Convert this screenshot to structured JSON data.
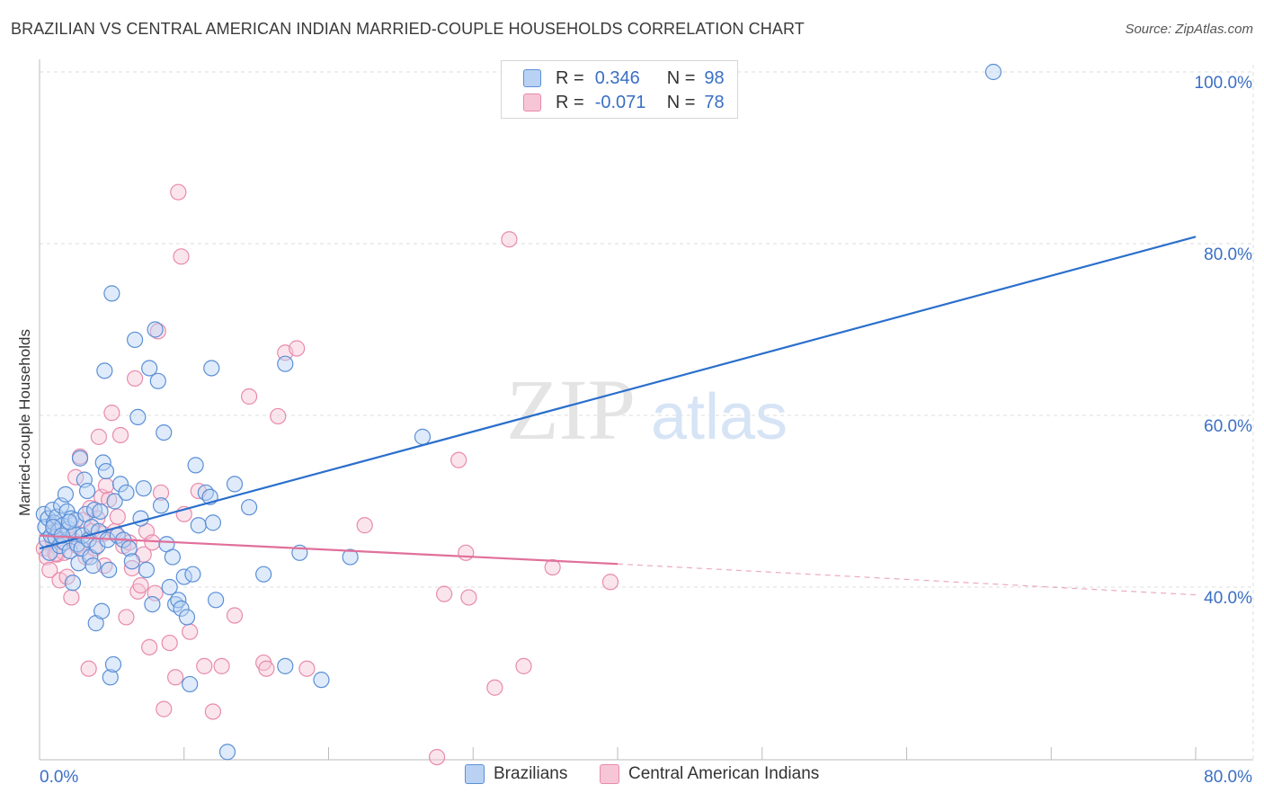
{
  "title": "BRAZILIAN VS CENTRAL AMERICAN INDIAN MARRIED-COUPLE HOUSEHOLDS CORRELATION CHART",
  "source": "Source: ZipAtlas.com",
  "watermark": {
    "zip": "ZIP",
    "atlas": "atlas"
  },
  "legend": {
    "rows": [
      {
        "r_label": "R =",
        "r_value": "0.346",
        "n_label": "N =",
        "n_value": "98"
      },
      {
        "r_label": "R =",
        "r_value": "-0.071",
        "n_label": "N =",
        "n_value": "78"
      }
    ]
  },
  "colors": {
    "blue_fill": "#b9d2f3",
    "blue_stroke": "#5b8fd6",
    "blue_line": "#2a6fcc",
    "pink_fill": "#f7c6d6",
    "pink_stroke": "#e88aab",
    "pink_line": "#e0709a",
    "tick_text": "#3a6fc4",
    "grid": "#dddddd"
  },
  "chart_data": {
    "type": "scatter",
    "title": "BRAZILIAN VS CENTRAL AMERICAN INDIAN MARRIED-COUPLE HOUSEHOLDS CORRELATION CHART",
    "xlabel": "",
    "ylabel": "Married-couple Households",
    "xlim": [
      0,
      80
    ],
    "ylim": [
      20,
      100
    ],
    "x_tick_labels": [
      {
        "value": 0,
        "label": "0.0%"
      },
      {
        "value": 80,
        "label": "80.0%"
      }
    ],
    "y_tick_labels": [
      {
        "value": 40,
        "label": "40.0%"
      },
      {
        "value": 60,
        "label": "60.0%"
      },
      {
        "value": 80,
        "label": "80.0%"
      },
      {
        "value": 100,
        "label": "100.0%"
      }
    ],
    "grid": true,
    "legend_position": "top-center",
    "series": [
      {
        "name": "Brazilians",
        "r": 0.346,
        "n": 98,
        "trend": {
          "x": [
            0,
            80
          ],
          "y": [
            44.5,
            80.8
          ],
          "dashed_from": null
        },
        "points": [
          [
            0.3,
            48.5
          ],
          [
            0.4,
            47
          ],
          [
            0.5,
            45.5
          ],
          [
            0.6,
            48
          ],
          [
            0.7,
            44
          ],
          [
            0.8,
            46
          ],
          [
            0.9,
            49
          ],
          [
            1.0,
            47.5
          ],
          [
            1.1,
            45.8
          ],
          [
            1.2,
            48.2
          ],
          [
            1.3,
            46.5
          ],
          [
            1.4,
            44.8
          ],
          [
            1.5,
            49.5
          ],
          [
            1.6,
            47.2
          ],
          [
            1.7,
            45.2
          ],
          [
            1.8,
            50.8
          ],
          [
            1.9,
            48.8
          ],
          [
            2.0,
            46.8
          ],
          [
            2.1,
            44.2
          ],
          [
            2.2,
            48.0
          ],
          [
            2.3,
            40.5
          ],
          [
            2.4,
            46.2
          ],
          [
            2.5,
            47.8
          ],
          [
            2.6,
            45.0
          ],
          [
            2.7,
            42.8
          ],
          [
            2.8,
            55.0
          ],
          [
            2.9,
            44.5
          ],
          [
            3.0,
            46.0
          ],
          [
            3.1,
            52.5
          ],
          [
            3.2,
            48.5
          ],
          [
            3.3,
            51.2
          ],
          [
            3.4,
            45.5
          ],
          [
            3.5,
            43.5
          ],
          [
            3.6,
            47.0
          ],
          [
            3.7,
            42.5
          ],
          [
            3.8,
            49.0
          ],
          [
            3.9,
            35.8
          ],
          [
            4.0,
            44.8
          ],
          [
            4.1,
            46.5
          ],
          [
            4.2,
            48.8
          ],
          [
            4.3,
            37.2
          ],
          [
            4.4,
            54.5
          ],
          [
            4.5,
            65.2
          ],
          [
            4.6,
            53.5
          ],
          [
            4.7,
            45.5
          ],
          [
            4.8,
            42.0
          ],
          [
            4.9,
            29.5
          ],
          [
            5.0,
            74.2
          ],
          [
            5.1,
            31.0
          ],
          [
            5.2,
            50.0
          ],
          [
            5.4,
            46.0
          ],
          [
            5.6,
            52.0
          ],
          [
            5.8,
            45.5
          ],
          [
            6.0,
            51.0
          ],
          [
            6.2,
            44.5
          ],
          [
            6.4,
            43.0
          ],
          [
            6.6,
            68.8
          ],
          [
            6.8,
            59.8
          ],
          [
            7.0,
            48.0
          ],
          [
            7.2,
            51.5
          ],
          [
            7.4,
            42.0
          ],
          [
            7.6,
            65.5
          ],
          [
            7.8,
            38.0
          ],
          [
            8.0,
            70.0
          ],
          [
            8.2,
            64.0
          ],
          [
            8.4,
            49.5
          ],
          [
            8.6,
            58.0
          ],
          [
            8.8,
            45.0
          ],
          [
            9.0,
            40.0
          ],
          [
            9.2,
            43.5
          ],
          [
            9.4,
            38.0
          ],
          [
            9.6,
            38.5
          ],
          [
            9.8,
            37.5
          ],
          [
            10.0,
            41.2
          ],
          [
            10.2,
            36.5
          ],
          [
            10.4,
            28.7
          ],
          [
            10.6,
            41.5
          ],
          [
            10.8,
            54.2
          ],
          [
            11.0,
            47.2
          ],
          [
            11.5,
            51.0
          ],
          [
            11.8,
            50.5
          ],
          [
            12.0,
            47.5
          ],
          [
            12.2,
            38.5
          ],
          [
            11.9,
            65.5
          ],
          [
            13.0,
            20.8
          ],
          [
            13.5,
            52.0
          ],
          [
            14.5,
            49.3
          ],
          [
            15.5,
            41.5
          ],
          [
            17.0,
            30.8
          ],
          [
            17.0,
            66.0
          ],
          [
            18.0,
            44.0
          ],
          [
            19.5,
            29.2
          ],
          [
            21.5,
            43.5
          ],
          [
            26.5,
            57.5
          ],
          [
            66.0,
            100.0
          ],
          [
            2.05,
            47.6
          ],
          [
            0.95,
            47.0
          ],
          [
            1.55,
            46.0
          ]
        ]
      },
      {
        "name": "Central American Indians",
        "r": -0.071,
        "n": 78,
        "trend": {
          "x": [
            0,
            40,
            80
          ],
          "y": [
            46.0,
            42.7,
            39.1
          ],
          "dashed_from": 40
        },
        "points": [
          [
            0.3,
            44.5
          ],
          [
            0.5,
            43.5
          ],
          [
            0.7,
            42.0
          ],
          [
            0.9,
            45.5
          ],
          [
            1.0,
            46.8
          ],
          [
            1.2,
            43.8
          ],
          [
            1.4,
            40.8
          ],
          [
            1.5,
            46.2
          ],
          [
            1.7,
            44.0
          ],
          [
            1.9,
            41.2
          ],
          [
            2.0,
            46.0
          ],
          [
            2.2,
            38.8
          ],
          [
            2.3,
            45.5
          ],
          [
            2.5,
            52.8
          ],
          [
            2.6,
            44.8
          ],
          [
            2.8,
            55.2
          ],
          [
            3.0,
            47.8
          ],
          [
            3.2,
            43.5
          ],
          [
            3.4,
            30.5
          ],
          [
            3.5,
            49.2
          ],
          [
            3.6,
            46.5
          ],
          [
            3.8,
            44.5
          ],
          [
            4.0,
            48.0
          ],
          [
            4.1,
            57.5
          ],
          [
            4.3,
            50.5
          ],
          [
            4.4,
            46.2
          ],
          [
            4.5,
            42.5
          ],
          [
            4.6,
            51.8
          ],
          [
            4.8,
            50.2
          ],
          [
            5.0,
            60.3
          ],
          [
            5.2,
            46.5
          ],
          [
            5.4,
            48.2
          ],
          [
            5.6,
            57.7
          ],
          [
            5.8,
            44.8
          ],
          [
            6.0,
            36.5
          ],
          [
            6.2,
            45.2
          ],
          [
            6.4,
            42.2
          ],
          [
            6.6,
            64.3
          ],
          [
            6.8,
            39.5
          ],
          [
            7.0,
            40.2
          ],
          [
            7.2,
            43.8
          ],
          [
            7.4,
            46.5
          ],
          [
            7.6,
            33.0
          ],
          [
            7.8,
            45.2
          ],
          [
            8.0,
            39.3
          ],
          [
            8.2,
            69.8
          ],
          [
            8.4,
            51.0
          ],
          [
            8.6,
            25.8
          ],
          [
            9.0,
            33.5
          ],
          [
            9.4,
            29.5
          ],
          [
            9.6,
            86.0
          ],
          [
            9.8,
            78.5
          ],
          [
            10.0,
            48.5
          ],
          [
            10.4,
            34.8
          ],
          [
            11.0,
            51.2
          ],
          [
            11.4,
            30.8
          ],
          [
            12.0,
            25.5
          ],
          [
            12.6,
            30.8
          ],
          [
            13.5,
            36.7
          ],
          [
            14.5,
            62.2
          ],
          [
            15.5,
            31.2
          ],
          [
            15.7,
            30.5
          ],
          [
            16.5,
            59.9
          ],
          [
            17.0,
            67.3
          ],
          [
            17.8,
            67.8
          ],
          [
            18.5,
            30.5
          ],
          [
            22.5,
            47.2
          ],
          [
            27.5,
            20.2
          ],
          [
            28.0,
            39.2
          ],
          [
            29.0,
            54.8
          ],
          [
            29.5,
            44.0
          ],
          [
            29.7,
            38.8
          ],
          [
            31.5,
            28.3
          ],
          [
            32.5,
            80.5
          ],
          [
            33.5,
            30.8
          ],
          [
            35.5,
            42.3
          ],
          [
            39.5,
            40.6
          ],
          [
            1.1,
            43.9
          ]
        ]
      }
    ]
  },
  "bottom_legend": [
    {
      "label": "Brazilians"
    },
    {
      "label": "Central American Indians"
    }
  ]
}
